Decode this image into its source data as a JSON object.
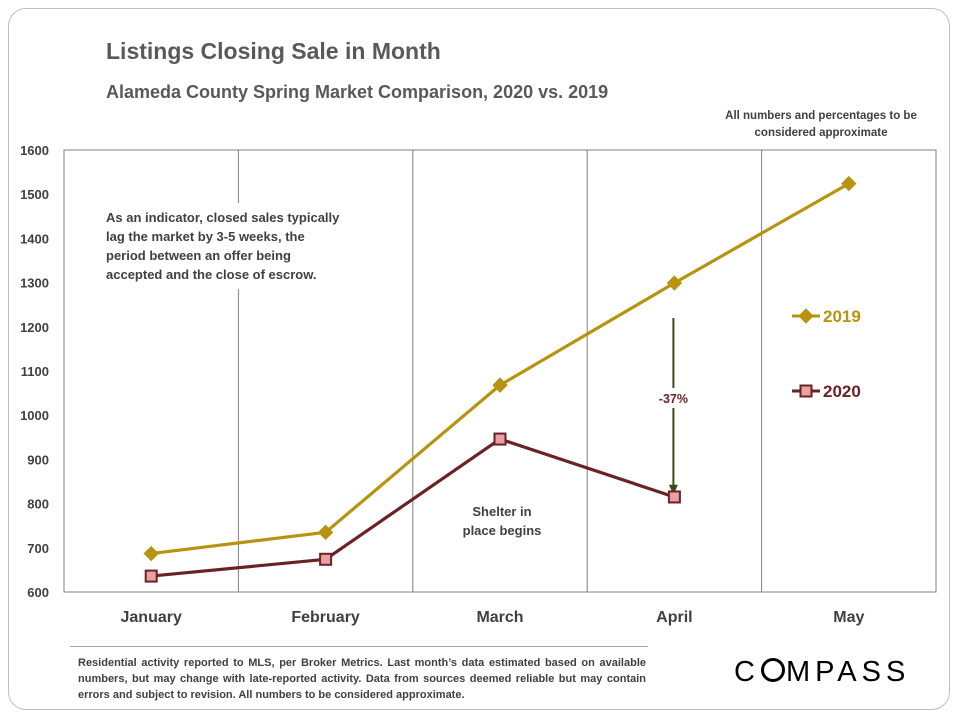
{
  "title": "Listings Closing Sale in Month",
  "subtitle": "Alameda County Spring Market Comparison,  2020 vs. 2019",
  "approx_note": "All numbers and percentages to be considered approximate",
  "footer": "Residential activity reported to MLS, per Broker Metrics. Last month’s data estimated based on available numbers, but may change with late-reported activity. Data from sources deemed reliable but may contain errors and subject to revision. All numbers to be considered approximate.",
  "logo": {
    "prefix": "C",
    "suffix": "MPASS"
  },
  "chart_data": {
    "type": "line",
    "title": "Listings Closing Sale in Month",
    "subtitle": "Alameda County Spring Market Comparison,  2020 vs. 2019",
    "categories": [
      "January",
      "February",
      "March",
      "April",
      "May"
    ],
    "ylim": [
      600,
      1600
    ],
    "yticks": [
      600,
      700,
      800,
      900,
      1000,
      1100,
      1200,
      1300,
      1400,
      1500,
      1600
    ],
    "grid": "vertical",
    "legend_position": "right",
    "series": [
      {
        "name": "2019",
        "values": [
          687,
          735,
          1068,
          1299,
          1524
        ],
        "color": "#b8930f",
        "marker": "diamond"
      },
      {
        "name": "2020",
        "values": [
          636,
          674,
          946,
          815,
          null
        ],
        "color": "#6b2226",
        "marker": "square",
        "marker_fill": "#e8a0a0"
      }
    ],
    "annotations": [
      {
        "id": "indicator",
        "text_lines": [
          "As an indicator, closed sales typically",
          "lag  the  market  by  3-5  weeks,  the",
          "period   between   an   offer   being",
          "accepted and the close of escrow."
        ]
      },
      {
        "id": "shelter",
        "text_lines": [
          "Shelter in",
          "place  begins"
        ]
      },
      {
        "id": "pct",
        "text": "-37%",
        "category": "April",
        "from": 1220,
        "to": 820,
        "color": "#3f4a1a"
      }
    ]
  }
}
